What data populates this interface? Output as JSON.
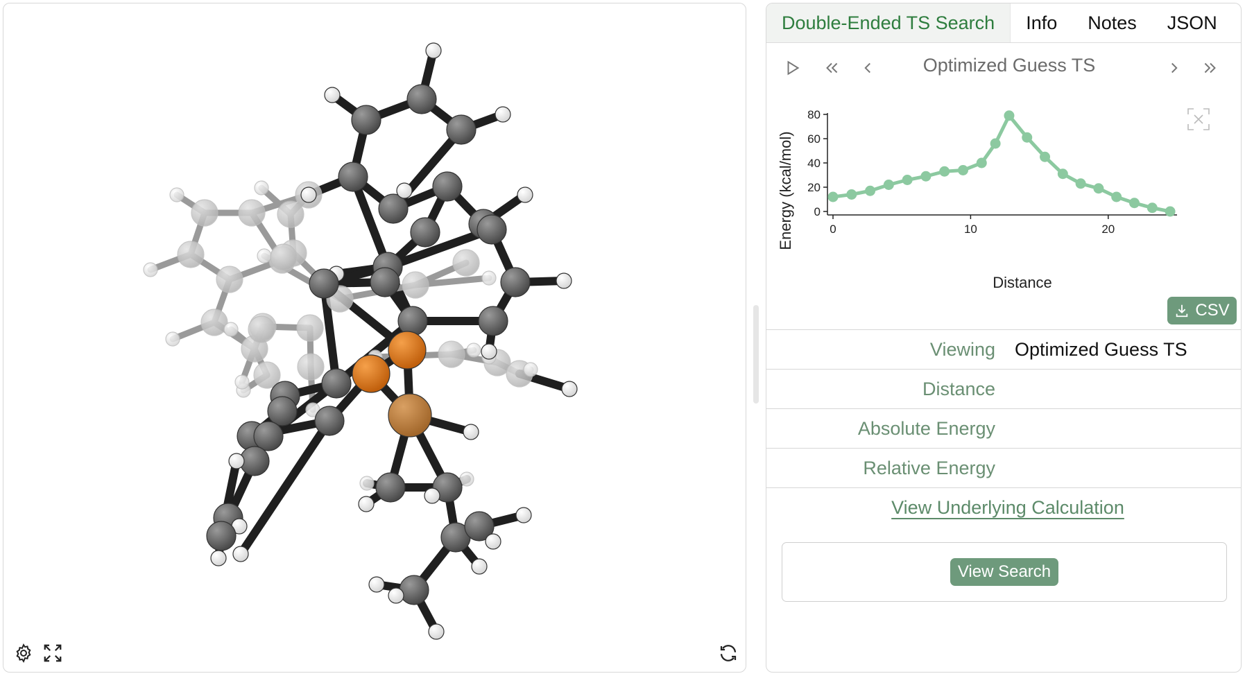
{
  "tabs": [
    {
      "label": "Double-Ended TS Search",
      "active": true
    },
    {
      "label": "Info",
      "active": false
    },
    {
      "label": "Notes",
      "active": false
    },
    {
      "label": "JSON",
      "active": false
    }
  ],
  "frame_nav": {
    "title": "Optimized Guess TS",
    "icons": [
      "play-icon",
      "first-icon",
      "previous-icon",
      "next-icon",
      "last-icon"
    ]
  },
  "viewer": {
    "icons": [
      "settings-icon",
      "fullscreen-icon",
      "reset-view-icon"
    ],
    "colors": {
      "carbon": "#666666",
      "hydrogen": "#ffffff",
      "metal": "#e07b1e",
      "phosphorus": "#c9873f",
      "bond": "#222222"
    }
  },
  "chart_data": {
    "type": "line",
    "xlabel": "Distance",
    "ylabel": "Energy (kcal/mol)",
    "xlim": [
      0,
      25
    ],
    "ylim": [
      0,
      80
    ],
    "xticks": [
      0,
      10,
      20
    ],
    "yticks": [
      0,
      20,
      40,
      60,
      80
    ],
    "color": "#8cc9a0",
    "x": [
      0,
      1.35,
      2.7,
      4.05,
      5.4,
      6.75,
      8.1,
      9.45,
      10.8,
      11.8,
      12.8,
      14.1,
      15.4,
      16.7,
      18.0,
      19.3,
      20.6,
      21.9,
      23.2,
      24.5
    ],
    "y": [
      12,
      14,
      17,
      22,
      26,
      29,
      33,
      34,
      40,
      56,
      79,
      61,
      45,
      31,
      23,
      19,
      12,
      7,
      3,
      0
    ]
  },
  "csv_button": {
    "label": "CSV",
    "icon": "download-icon"
  },
  "details": [
    {
      "label": "Viewing",
      "value": "Optimized Guess TS"
    },
    {
      "label": "Distance",
      "value": ""
    },
    {
      "label": "Absolute Energy",
      "value": ""
    },
    {
      "label": "Relative Energy",
      "value": ""
    }
  ],
  "links": {
    "underlying": "View Underlying Calculation"
  },
  "search_button": {
    "label": "View Search"
  }
}
